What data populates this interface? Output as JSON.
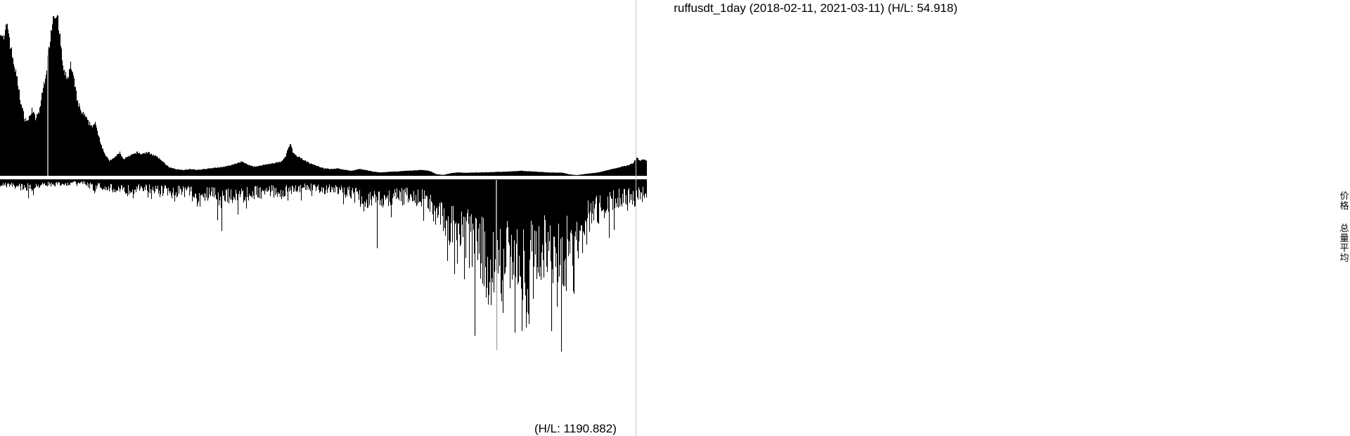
{
  "chart_data": {
    "type": "bar",
    "title": "ruffusdt_1day (2018-02-11, 2021-03-11) (H/L: 54.918)",
    "volume_label": "(H/L: 1190.882)",
    "side_labels": {
      "price": "价格",
      "volume": "总量平均"
    },
    "x_range": [
      "2018-02-11",
      "2021-03-11"
    ],
    "price_high_low_ratio": 54.918,
    "volume_high_low_ratio": 1190.882,
    "grid": false,
    "colors": {
      "bars": "#000000",
      "marker_line": "#c8c8c8",
      "background": "#ffffff"
    },
    "price_profile": [
      [
        0,
        0.88
      ],
      [
        5,
        0.8
      ],
      [
        10,
        0.92
      ],
      [
        15,
        0.76
      ],
      [
        20,
        0.66
      ],
      [
        25,
        0.55
      ],
      [
        30,
        0.42
      ],
      [
        35,
        0.34
      ],
      [
        40,
        0.33
      ],
      [
        45,
        0.4
      ],
      [
        50,
        0.34
      ],
      [
        55,
        0.38
      ],
      [
        60,
        0.5
      ],
      [
        65,
        0.62
      ],
      [
        70,
        0.8
      ],
      [
        75,
        0.96
      ],
      [
        80,
        0.98
      ],
      [
        85,
        0.82
      ],
      [
        90,
        0.62
      ],
      [
        95,
        0.58
      ],
      [
        100,
        0.66
      ],
      [
        105,
        0.56
      ],
      [
        110,
        0.44
      ],
      [
        115,
        0.38
      ],
      [
        120,
        0.36
      ],
      [
        125,
        0.32
      ],
      [
        130,
        0.3
      ],
      [
        135,
        0.31
      ],
      [
        140,
        0.24
      ],
      [
        145,
        0.17
      ],
      [
        150,
        0.12
      ],
      [
        155,
        0.09
      ],
      [
        160,
        0.1
      ],
      [
        165,
        0.12
      ],
      [
        170,
        0.14
      ],
      [
        175,
        0.1
      ],
      [
        180,
        0.11
      ],
      [
        185,
        0.12
      ],
      [
        190,
        0.13
      ],
      [
        195,
        0.14
      ],
      [
        200,
        0.13
      ],
      [
        210,
        0.14
      ],
      [
        220,
        0.12
      ],
      [
        230,
        0.09
      ],
      [
        240,
        0.05
      ],
      [
        250,
        0.04
      ],
      [
        260,
        0.035
      ],
      [
        270,
        0.04
      ],
      [
        280,
        0.035
      ],
      [
        290,
        0.04
      ],
      [
        300,
        0.045
      ],
      [
        310,
        0.05
      ],
      [
        320,
        0.055
      ],
      [
        330,
        0.065
      ],
      [
        340,
        0.08
      ],
      [
        345,
        0.085
      ],
      [
        350,
        0.07
      ],
      [
        360,
        0.055
      ],
      [
        370,
        0.06
      ],
      [
        380,
        0.07
      ],
      [
        390,
        0.075
      ],
      [
        400,
        0.085
      ],
      [
        405,
        0.11
      ],
      [
        410,
        0.17
      ],
      [
        413,
        0.19
      ],
      [
        416,
        0.14
      ],
      [
        420,
        0.12
      ],
      [
        430,
        0.1
      ],
      [
        440,
        0.075
      ],
      [
        450,
        0.06
      ],
      [
        460,
        0.045
      ],
      [
        470,
        0.04
      ],
      [
        480,
        0.045
      ],
      [
        490,
        0.035
      ],
      [
        500,
        0.03
      ],
      [
        510,
        0.04
      ],
      [
        520,
        0.035
      ],
      [
        530,
        0.025
      ],
      [
        540,
        0.02
      ],
      [
        560,
        0.025
      ],
      [
        580,
        0.03
      ],
      [
        600,
        0.035
      ],
      [
        610,
        0.03
      ],
      [
        620,
        0.01
      ],
      [
        630,
        0.005
      ],
      [
        640,
        0.015
      ],
      [
        650,
        0.02
      ],
      [
        660,
        0.018
      ],
      [
        680,
        0.02
      ],
      [
        700,
        0.022
      ],
      [
        720,
        0.025
      ],
      [
        740,
        0.03
      ],
      [
        760,
        0.025
      ],
      [
        780,
        0.02
      ],
      [
        800,
        0.018
      ],
      [
        810,
        0.008
      ],
      [
        820,
        0.004
      ],
      [
        830,
        0.01
      ],
      [
        840,
        0.015
      ],
      [
        850,
        0.02
      ],
      [
        860,
        0.03
      ],
      [
        870,
        0.04
      ],
      [
        880,
        0.05
      ],
      [
        890,
        0.06
      ],
      [
        900,
        0.075
      ],
      [
        905,
        0.11
      ],
      [
        910,
        0.09
      ],
      [
        915,
        0.1
      ],
      [
        919,
        0.09
      ]
    ],
    "volume_profile": [
      [
        0,
        0.03
      ],
      [
        20,
        0.04
      ],
      [
        40,
        0.05
      ],
      [
        60,
        0.03
      ],
      [
        80,
        0.03
      ],
      [
        100,
        0.025
      ],
      [
        120,
        0.02
      ],
      [
        135,
        0.06
      ],
      [
        140,
        0.035
      ],
      [
        160,
        0.06
      ],
      [
        180,
        0.07
      ],
      [
        200,
        0.05
      ],
      [
        220,
        0.06
      ],
      [
        240,
        0.08
      ],
      [
        260,
        0.07
      ],
      [
        280,
        0.1
      ],
      [
        300,
        0.09
      ],
      [
        315,
        0.12
      ],
      [
        320,
        0.11
      ],
      [
        340,
        0.1
      ],
      [
        360,
        0.08
      ],
      [
        380,
        0.07
      ],
      [
        400,
        0.08
      ],
      [
        420,
        0.06
      ],
      [
        440,
        0.05
      ],
      [
        460,
        0.06
      ],
      [
        480,
        0.07
      ],
      [
        500,
        0.08
      ],
      [
        510,
        0.12
      ],
      [
        520,
        0.14
      ],
      [
        530,
        0.1
      ],
      [
        540,
        0.12
      ],
      [
        560,
        0.11
      ],
      [
        580,
        0.1
      ],
      [
        600,
        0.12
      ],
      [
        620,
        0.15
      ],
      [
        630,
        0.22
      ],
      [
        640,
        0.28
      ],
      [
        650,
        0.35
      ],
      [
        660,
        0.36
      ],
      [
        670,
        0.38
      ],
      [
        680,
        0.42
      ],
      [
        690,
        0.5
      ],
      [
        700,
        0.55
      ],
      [
        710,
        0.6
      ],
      [
        720,
        0.48
      ],
      [
        730,
        0.55
      ],
      [
        740,
        0.62
      ],
      [
        750,
        0.6
      ],
      [
        760,
        0.45
      ],
      [
        770,
        0.42
      ],
      [
        780,
        0.4
      ],
      [
        790,
        0.45
      ],
      [
        800,
        0.48
      ],
      [
        810,
        0.42
      ],
      [
        820,
        0.35
      ],
      [
        830,
        0.3
      ],
      [
        840,
        0.22
      ],
      [
        850,
        0.18
      ],
      [
        860,
        0.16
      ],
      [
        870,
        0.14
      ],
      [
        880,
        0.12
      ],
      [
        890,
        0.1
      ],
      [
        900,
        0.12
      ],
      [
        910,
        0.09
      ],
      [
        919,
        0.1
      ]
    ],
    "volume_spikes": [
      [
        315,
        0.3
      ],
      [
        536,
        0.4
      ],
      [
        556,
        0.22
      ],
      [
        646,
        0.55
      ],
      [
        660,
        0.58
      ],
      [
        688,
        0.62
      ],
      [
        706,
        0.99
      ],
      [
        732,
        0.89
      ],
      [
        742,
        0.88
      ],
      [
        748,
        0.86
      ],
      [
        752,
        0.84
      ],
      [
        792,
        0.74
      ],
      [
        815,
        0.65
      ],
      [
        866,
        0.34
      ]
    ]
  }
}
